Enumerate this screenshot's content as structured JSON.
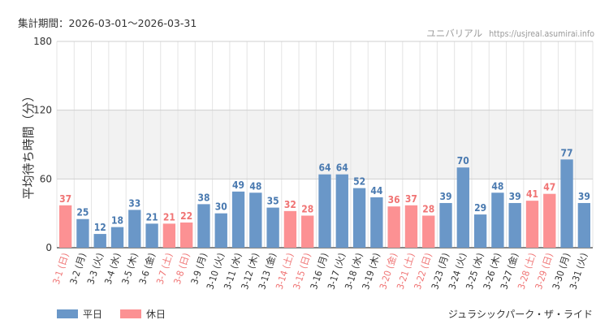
{
  "header": {
    "period_label": "集計期間：2026-03-01〜2026-03-31",
    "site_name": "ユニバリアル",
    "site_url": "https://usjreal.asumirai.info"
  },
  "ride_name": "ジュラシックパーク・ザ・ライド",
  "legend": {
    "weekday": "平日",
    "holiday": "休日"
  },
  "colors": {
    "weekday": "#6a97c8",
    "holiday": "#fc9193",
    "weekday_text": "#4a7ab0",
    "holiday_text": "#f07474",
    "band": "#f2f2f2",
    "grid": "#e4e4e4"
  },
  "chart_data": {
    "type": "bar",
    "title": "",
    "ylabel": "平均待ち時間（分）",
    "xlabel": "",
    "ylim": [
      0,
      180
    ],
    "yticks": [
      0,
      60,
      120,
      180
    ],
    "categories": [
      "3-1 (日)",
      "3-2 (月)",
      "3-3 (火)",
      "3-4 (水)",
      "3-5 (木)",
      "3-6 (金)",
      "3-7 (土)",
      "3-8 (日)",
      "3-9 (月)",
      "3-10 (火)",
      "3-11 (水)",
      "3-12 (木)",
      "3-13 (金)",
      "3-14 (土)",
      "3-15 (日)",
      "3-16 (月)",
      "3-17 (火)",
      "3-18 (水)",
      "3-19 (木)",
      "3-20 (金)",
      "3-21 (土)",
      "3-22 (日)",
      "3-23 (月)",
      "3-24 (火)",
      "3-25 (水)",
      "3-26 (木)",
      "3-27 (金)",
      "3-28 (土)",
      "3-29 (日)",
      "3-30 (月)",
      "3-31 (火)"
    ],
    "values": [
      37,
      25,
      12,
      18,
      33,
      21,
      21,
      22,
      38,
      30,
      49,
      48,
      35,
      32,
      28,
      64,
      64,
      52,
      44,
      36,
      37,
      28,
      39,
      70,
      29,
      48,
      39,
      41,
      47,
      77,
      39
    ],
    "holiday": [
      true,
      false,
      false,
      false,
      false,
      false,
      true,
      true,
      false,
      false,
      false,
      false,
      false,
      true,
      true,
      false,
      false,
      false,
      false,
      true,
      true,
      true,
      false,
      false,
      false,
      false,
      false,
      true,
      true,
      false,
      false
    ]
  }
}
